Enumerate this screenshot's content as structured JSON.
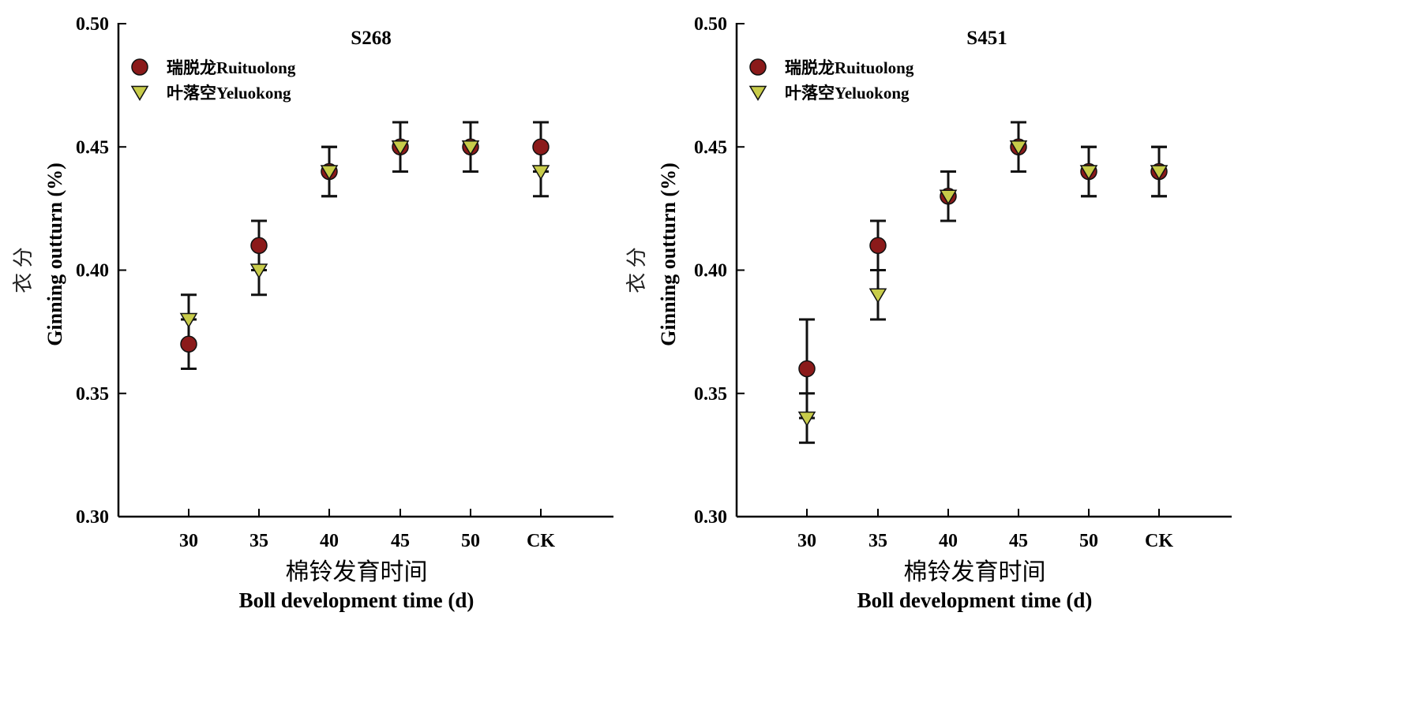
{
  "chart_data": [
    {
      "type": "scatter",
      "title": "S268",
      "xlabel_cn": "棉铃发育时间",
      "xlabel_en": "Boll development time (d)",
      "ylabel_cn": "衣 分",
      "ylabel_en": "Ginning outturn (%)",
      "ylim": [
        0.3,
        0.5
      ],
      "yticks": [
        "0.30",
        "0.35",
        "0.40",
        "0.45",
        "0.50"
      ],
      "categories": [
        "30",
        "35",
        "40",
        "45",
        "50",
        "CK"
      ],
      "legend_position": "top-left",
      "series": [
        {
          "name": "瑞脱龙Ruituolong",
          "marker": "circle",
          "color": "#8b1a1a",
          "values": [
            0.37,
            0.41,
            0.44,
            0.45,
            0.45,
            0.45
          ],
          "errors": [
            0.01,
            0.01,
            0.01,
            0.01,
            0.01,
            0.01
          ]
        },
        {
          "name": "叶落空Yeluokong",
          "marker": "triangle-down",
          "color": "#c8cc4a",
          "values": [
            0.38,
            0.4,
            0.44,
            0.45,
            0.45,
            0.44
          ],
          "errors": [
            0.01,
            0.01,
            0.01,
            0.01,
            0.01,
            0.01
          ]
        }
      ]
    },
    {
      "type": "scatter",
      "title": "S451",
      "xlabel_cn": "棉铃发育时间",
      "xlabel_en": "Boll development time (d)",
      "ylabel_cn": "衣 分",
      "ylabel_en": "Ginning outturn (%)",
      "ylim": [
        0.3,
        0.5
      ],
      "yticks": [
        "0.30",
        "0.35",
        "0.40",
        "0.45",
        "0.50"
      ],
      "categories": [
        "30",
        "35",
        "40",
        "45",
        "50",
        "CK"
      ],
      "legend_position": "top-left",
      "series": [
        {
          "name": "瑞脱龙Ruituolong",
          "marker": "circle",
          "color": "#8b1a1a",
          "values": [
            0.36,
            0.41,
            0.43,
            0.45,
            0.44,
            0.44
          ],
          "errors": [
            0.02,
            0.01,
            0.01,
            0.01,
            0.01,
            0.01
          ]
        },
        {
          "name": "叶落空Yeluokong",
          "marker": "triangle-down",
          "color": "#c8cc4a",
          "values": [
            0.34,
            0.39,
            0.43,
            0.45,
            0.44,
            0.44
          ],
          "errors": [
            0.01,
            0.01,
            0.01,
            0.01,
            0.01,
            0.01
          ]
        }
      ]
    }
  ]
}
